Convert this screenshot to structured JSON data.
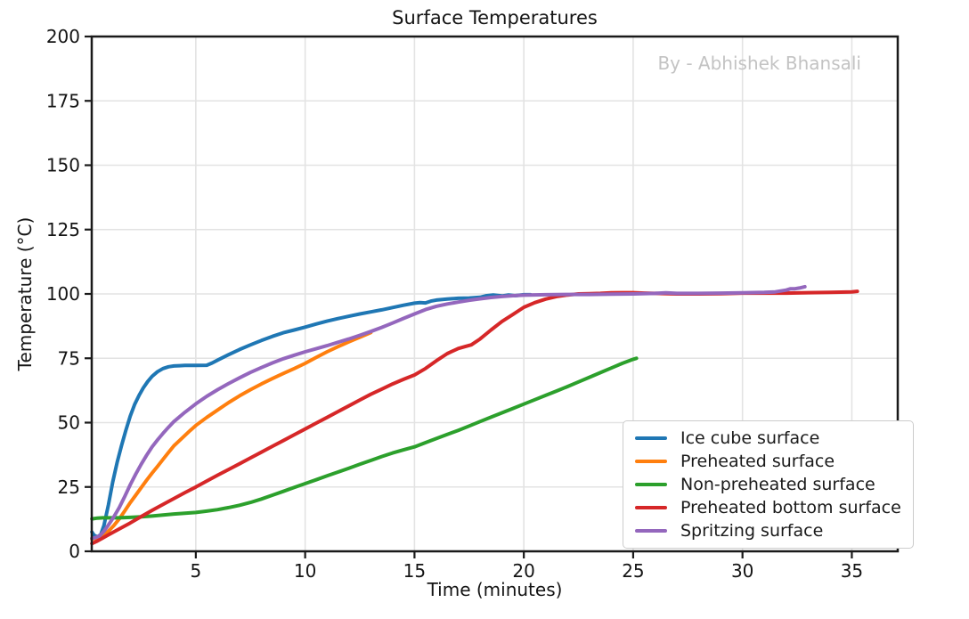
{
  "figure": {
    "watermark": "By - Abhishek Bhansali"
  },
  "colors": {
    "background": "#ffffff",
    "grid": "#e3e3e3",
    "spine": "#1a1a1a",
    "tick_label": "#141414",
    "watermark": "#c3c3c3",
    "legend_border": "#cccccc"
  },
  "chart_data": {
    "type": "line",
    "title": "Surface Temperatures",
    "xlabel": "Time (minutes)",
    "ylabel": "Temperature (°C)",
    "xlim": [
      0.24,
      37.1
    ],
    "ylim": [
      0,
      200
    ],
    "xticks": [
      5,
      10,
      15,
      20,
      25,
      30,
      35
    ],
    "yticks": [
      0,
      25,
      50,
      75,
      100,
      125,
      150,
      175,
      200
    ],
    "grid": true,
    "legend": {
      "position": "center-right-inside",
      "entries": [
        "Ice cube surface",
        "Preheated surface",
        "Non-preheated surface",
        "Preheated bottom surface",
        "Spritzing surface"
      ]
    },
    "series": [
      {
        "name": "Ice cube surface",
        "color": "#1f77b4",
        "points": [
          [
            0.25,
            7.5
          ],
          [
            0.35,
            6.2
          ],
          [
            0.5,
            5.6
          ],
          [
            0.65,
            6.5
          ],
          [
            0.8,
            10
          ],
          [
            1.0,
            18
          ],
          [
            1.2,
            27
          ],
          [
            1.4,
            34.5
          ],
          [
            1.6,
            41
          ],
          [
            1.8,
            47
          ],
          [
            2.0,
            52.5
          ],
          [
            2.2,
            57
          ],
          [
            2.4,
            60.5
          ],
          [
            2.6,
            63.5
          ],
          [
            2.8,
            66
          ],
          [
            3.0,
            68
          ],
          [
            3.25,
            69.8
          ],
          [
            3.5,
            71
          ],
          [
            3.75,
            71.7
          ],
          [
            4.0,
            72
          ],
          [
            4.25,
            72.1
          ],
          [
            4.5,
            72.2
          ],
          [
            5.0,
            72.2
          ],
          [
            5.5,
            72.3
          ],
          [
            5.75,
            73.2
          ],
          [
            6.0,
            74.3
          ],
          [
            6.5,
            76.4
          ],
          [
            7.0,
            78.4
          ],
          [
            7.5,
            80.2
          ],
          [
            8.0,
            81.9
          ],
          [
            8.5,
            83.5
          ],
          [
            9.0,
            84.9
          ],
          [
            9.5,
            86
          ],
          [
            10.0,
            87.1
          ],
          [
            10.5,
            88.3
          ],
          [
            11.0,
            89.4
          ],
          [
            11.5,
            90.4
          ],
          [
            12.0,
            91.3
          ],
          [
            12.5,
            92.2
          ],
          [
            13.0,
            93
          ],
          [
            13.5,
            93.8
          ],
          [
            14.0,
            94.7
          ],
          [
            14.5,
            95.6
          ],
          [
            15.0,
            96.4
          ],
          [
            15.25,
            96.6
          ],
          [
            15.5,
            96.5
          ],
          [
            15.75,
            97.2
          ],
          [
            16.0,
            97.6
          ],
          [
            16.5,
            98
          ],
          [
            17.0,
            98.3
          ],
          [
            17.5,
            98.4
          ],
          [
            18.0,
            98.7
          ],
          [
            18.3,
            99.3
          ],
          [
            18.6,
            99.6
          ],
          [
            19.0,
            99.2
          ],
          [
            19.3,
            99.6
          ],
          [
            19.6,
            99.3
          ],
          [
            20.0,
            99.7
          ],
          [
            20.3,
            99.7
          ]
        ]
      },
      {
        "name": "Preheated surface",
        "color": "#ff7f0e",
        "points": [
          [
            0.25,
            4.8
          ],
          [
            0.5,
            5.2
          ],
          [
            0.75,
            6.2
          ],
          [
            1.0,
            7.8
          ],
          [
            1.25,
            10
          ],
          [
            1.5,
            12.6
          ],
          [
            1.75,
            15.7
          ],
          [
            2.0,
            18.9
          ],
          [
            2.25,
            21.8
          ],
          [
            2.5,
            24.7
          ],
          [
            2.75,
            27.6
          ],
          [
            3.0,
            30.4
          ],
          [
            3.25,
            33
          ],
          [
            3.5,
            35.7
          ],
          [
            3.75,
            38.4
          ],
          [
            4.0,
            41
          ],
          [
            4.25,
            43
          ],
          [
            4.5,
            45
          ],
          [
            4.75,
            47
          ],
          [
            5.0,
            48.9
          ],
          [
            5.5,
            52
          ],
          [
            6.0,
            54.9
          ],
          [
            6.5,
            57.8
          ],
          [
            7.0,
            60.4
          ],
          [
            7.5,
            62.8
          ],
          [
            8.0,
            65
          ],
          [
            8.5,
            67.1
          ],
          [
            9.0,
            69.1
          ],
          [
            9.5,
            71
          ],
          [
            10.0,
            73
          ],
          [
            10.5,
            75.3
          ],
          [
            11.0,
            77.5
          ],
          [
            11.5,
            79.5
          ],
          [
            12.0,
            81.4
          ],
          [
            12.5,
            83.2
          ],
          [
            13.0,
            85
          ]
        ]
      },
      {
        "name": "Non-preheated surface",
        "color": "#2ca02c",
        "points": [
          [
            0.25,
            12.6
          ],
          [
            0.5,
            12.9
          ],
          [
            0.75,
            13
          ],
          [
            1.0,
            13
          ],
          [
            1.5,
            13
          ],
          [
            2.0,
            13.2
          ],
          [
            2.5,
            13.4
          ],
          [
            3.0,
            13.7
          ],
          [
            3.5,
            14.1
          ],
          [
            4.0,
            14.5
          ],
          [
            4.5,
            14.8
          ],
          [
            5.0,
            15.1
          ],
          [
            5.5,
            15.6
          ],
          [
            6.0,
            16.2
          ],
          [
            6.5,
            17
          ],
          [
            7.0,
            17.9
          ],
          [
            7.5,
            19
          ],
          [
            8.0,
            20.3
          ],
          [
            8.5,
            21.8
          ],
          [
            9.0,
            23.3
          ],
          [
            9.5,
            24.8
          ],
          [
            10.0,
            26.3
          ],
          [
            10.5,
            27.8
          ],
          [
            11.0,
            29.3
          ],
          [
            11.5,
            30.8
          ],
          [
            12.0,
            32.3
          ],
          [
            12.5,
            33.8
          ],
          [
            13.0,
            35.3
          ],
          [
            13.5,
            36.8
          ],
          [
            14.0,
            38.2
          ],
          [
            14.5,
            39.4
          ],
          [
            15.0,
            40.6
          ],
          [
            15.5,
            42.2
          ],
          [
            16.0,
            43.8
          ],
          [
            16.5,
            45.4
          ],
          [
            17.0,
            47
          ],
          [
            17.5,
            48.7
          ],
          [
            18.0,
            50.4
          ],
          [
            18.5,
            52.1
          ],
          [
            19.0,
            53.8
          ],
          [
            19.5,
            55.5
          ],
          [
            20.0,
            57.2
          ],
          [
            20.5,
            58.9
          ],
          [
            21.0,
            60.6
          ],
          [
            21.5,
            62.3
          ],
          [
            22.0,
            64
          ],
          [
            22.5,
            65.8
          ],
          [
            23.0,
            67.6
          ],
          [
            23.5,
            69.4
          ],
          [
            24.0,
            71.2
          ],
          [
            24.5,
            73
          ],
          [
            25.0,
            74.6
          ],
          [
            25.15,
            75
          ]
        ]
      },
      {
        "name": "Preheated bottom surface",
        "color": "#d62728",
        "points": [
          [
            0.25,
            3
          ],
          [
            0.5,
            4
          ],
          [
            0.75,
            5.2
          ],
          [
            1.0,
            6.4
          ],
          [
            1.5,
            8.7
          ],
          [
            2.0,
            11
          ],
          [
            2.5,
            13.5
          ],
          [
            3.0,
            15.9
          ],
          [
            3.5,
            18.2
          ],
          [
            4.0,
            20.5
          ],
          [
            4.5,
            22.8
          ],
          [
            5.0,
            25
          ],
          [
            5.5,
            27.3
          ],
          [
            6.0,
            29.6
          ],
          [
            6.5,
            31.8
          ],
          [
            7.0,
            34
          ],
          [
            7.5,
            36.3
          ],
          [
            8.0,
            38.5
          ],
          [
            8.5,
            40.8
          ],
          [
            9.0,
            43
          ],
          [
            9.5,
            45.3
          ],
          [
            10.0,
            47.5
          ],
          [
            10.5,
            49.8
          ],
          [
            11.0,
            52
          ],
          [
            11.5,
            54.3
          ],
          [
            12.0,
            56.5
          ],
          [
            12.5,
            58.8
          ],
          [
            13.0,
            61
          ],
          [
            13.5,
            63
          ],
          [
            14.0,
            65
          ],
          [
            14.5,
            66.8
          ],
          [
            15.0,
            68.5
          ],
          [
            15.5,
            71
          ],
          [
            16.0,
            74
          ],
          [
            16.5,
            76.8
          ],
          [
            17.0,
            78.8
          ],
          [
            17.3,
            79.5
          ],
          [
            17.6,
            80.2
          ],
          [
            18.0,
            82.5
          ],
          [
            18.5,
            86
          ],
          [
            19.0,
            89.3
          ],
          [
            19.5,
            92
          ],
          [
            20.0,
            94.8
          ],
          [
            20.5,
            96.6
          ],
          [
            21.0,
            98
          ],
          [
            21.5,
            99
          ],
          [
            22.0,
            99.6
          ],
          [
            22.5,
            100
          ],
          [
            23.0,
            100.1
          ],
          [
            23.5,
            100.2
          ],
          [
            24.0,
            100.4
          ],
          [
            24.5,
            100.5
          ],
          [
            25.0,
            100.5
          ],
          [
            25.5,
            100.3
          ],
          [
            26.0,
            100.2
          ],
          [
            27.0,
            100
          ],
          [
            28.0,
            100
          ],
          [
            29.0,
            100.1
          ],
          [
            30.0,
            100.3
          ],
          [
            31.0,
            100.3
          ],
          [
            32.0,
            100.3
          ],
          [
            33.0,
            100.5
          ],
          [
            34.0,
            100.6
          ],
          [
            35.0,
            100.8
          ],
          [
            35.25,
            101
          ]
        ]
      },
      {
        "name": "Spritzing surface",
        "color": "#9467bd",
        "points": [
          [
            0.25,
            5
          ],
          [
            0.4,
            5.3
          ],
          [
            0.6,
            6
          ],
          [
            0.8,
            7.8
          ],
          [
            1.0,
            10.2
          ],
          [
            1.25,
            13.4
          ],
          [
            1.5,
            17
          ],
          [
            1.75,
            21.3
          ],
          [
            2.0,
            25.8
          ],
          [
            2.25,
            30
          ],
          [
            2.5,
            33.8
          ],
          [
            2.75,
            37.3
          ],
          [
            3.0,
            40.6
          ],
          [
            3.25,
            43.3
          ],
          [
            3.5,
            45.8
          ],
          [
            3.75,
            48.2
          ],
          [
            4.0,
            50.4
          ],
          [
            4.5,
            54
          ],
          [
            5.0,
            57.3
          ],
          [
            5.5,
            60.2
          ],
          [
            6.0,
            62.8
          ],
          [
            6.5,
            65.2
          ],
          [
            7.0,
            67.4
          ],
          [
            7.5,
            69.5
          ],
          [
            8.0,
            71.4
          ],
          [
            8.5,
            73.2
          ],
          [
            9.0,
            74.8
          ],
          [
            9.5,
            76.2
          ],
          [
            10.0,
            77.5
          ],
          [
            10.5,
            78.7
          ],
          [
            11.0,
            79.9
          ],
          [
            11.5,
            81.2
          ],
          [
            12.0,
            82.5
          ],
          [
            12.5,
            83.9
          ],
          [
            13.0,
            85.4
          ],
          [
            13.5,
            87
          ],
          [
            14.0,
            88.7
          ],
          [
            14.5,
            90.5
          ],
          [
            15.0,
            92.2
          ],
          [
            15.5,
            93.9
          ],
          [
            16.0,
            95.2
          ],
          [
            16.5,
            96.1
          ],
          [
            17.0,
            96.8
          ],
          [
            17.5,
            97.5
          ],
          [
            18.0,
            98.1
          ],
          [
            18.5,
            98.6
          ],
          [
            19.0,
            99
          ],
          [
            19.5,
            99.3
          ],
          [
            20.0,
            99.5
          ],
          [
            21.0,
            99.7
          ],
          [
            22.0,
            99.8
          ],
          [
            23.0,
            99.8
          ],
          [
            24.0,
            99.9
          ],
          [
            25.0,
            100
          ],
          [
            26.0,
            100.2
          ],
          [
            26.5,
            100.4
          ],
          [
            27.0,
            100.2
          ],
          [
            28.0,
            100.2
          ],
          [
            29.0,
            100.3
          ],
          [
            30.0,
            100.4
          ],
          [
            31.0,
            100.6
          ],
          [
            31.5,
            100.8
          ],
          [
            32.0,
            101.5
          ],
          [
            32.2,
            102
          ],
          [
            32.4,
            102
          ],
          [
            32.6,
            102.3
          ],
          [
            32.85,
            102.8
          ]
        ]
      }
    ]
  }
}
